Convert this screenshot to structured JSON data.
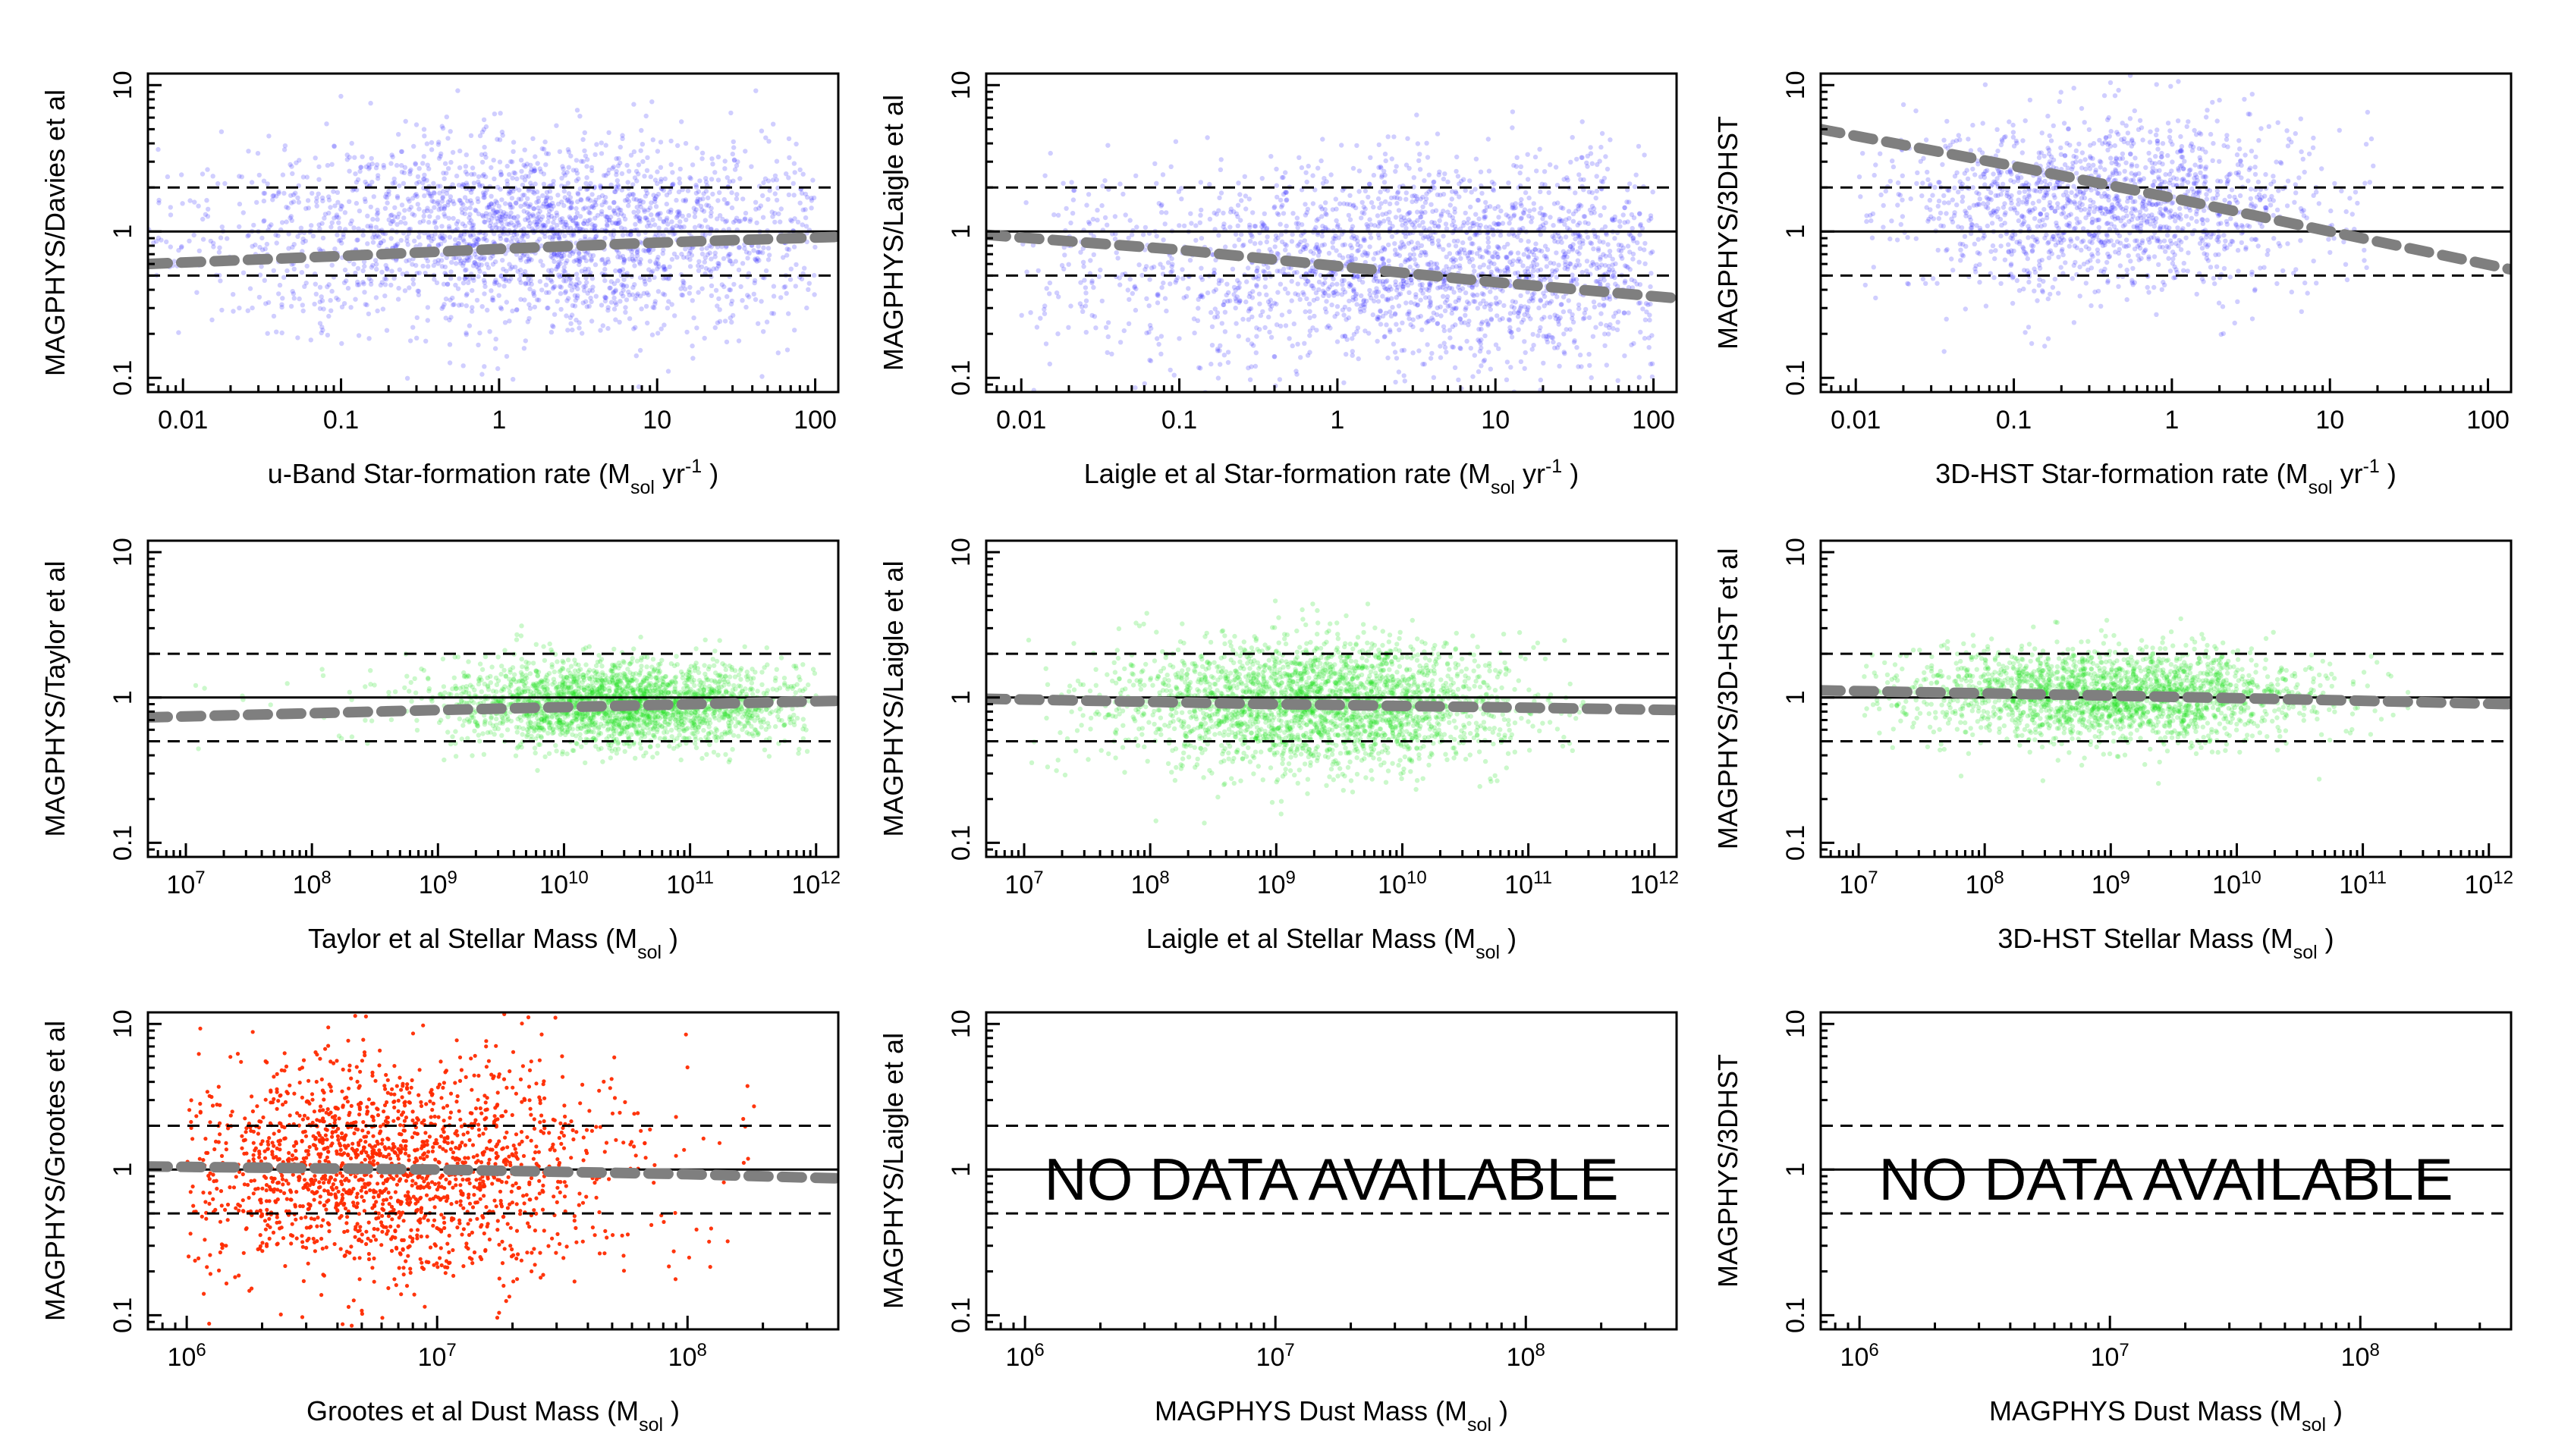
{
  "colors": {
    "sfr": "#2a1fff",
    "mass": "#14e014",
    "dust": "#ff2a00",
    "trend": "#7f7f7f",
    "reference": "#000000"
  },
  "no_data_text": "NO DATA AVAILABLE",
  "chart_data": [
    {
      "id": "p1",
      "type": "scatter",
      "row": 0,
      "col": 0,
      "point_color": "sfr",
      "xlabel": "u-Band Star-formation rate (M_sol yr^-1 )",
      "ylabel": "MAGPHYS/Davies et al",
      "xlim": [
        0.006,
        140
      ],
      "ylim": [
        0.08,
        12
      ],
      "xticks": [
        {
          "v": 0.01,
          "label": "0.01"
        },
        {
          "v": 0.1,
          "label": "0.1"
        },
        {
          "v": 1,
          "label": "1"
        },
        {
          "v": 10,
          "label": "10"
        },
        {
          "v": 100,
          "label": "100"
        }
      ],
      "yticks": [
        {
          "v": 0.1,
          "label": "0.1"
        },
        {
          "v": 1,
          "label": "1"
        },
        {
          "v": 10,
          "label": "10"
        }
      ],
      "reference_lines": {
        "solid": 1,
        "dashed": [
          0.5,
          2
        ]
      },
      "trend": {
        "x": [
          0.006,
          0.1,
          1,
          10,
          140
        ],
        "y": [
          0.6,
          0.68,
          0.76,
          0.84,
          0.92
        ]
      },
      "cloud": {
        "x_range": [
          0.006,
          100
        ],
        "x_center": 2,
        "x_spread": 1.0,
        "y_center": 1.0,
        "y_spread": 0.33,
        "n": 2400
      },
      "no_data": false
    },
    {
      "id": "p2",
      "type": "scatter",
      "row": 0,
      "col": 1,
      "point_color": "sfr",
      "xlabel": "Laigle et al Star-formation rate (M_sol yr^-1 )",
      "ylabel": "MAGPHYS/Laigle et al",
      "xlim": [
        0.006,
        140
      ],
      "ylim": [
        0.08,
        12
      ],
      "xticks": [
        {
          "v": 0.01,
          "label": "0.01"
        },
        {
          "v": 0.1,
          "label": "0.1"
        },
        {
          "v": 1,
          "label": "1"
        },
        {
          "v": 10,
          "label": "10"
        },
        {
          "v": 100,
          "label": "100"
        }
      ],
      "yticks": [
        {
          "v": 0.1,
          "label": "0.1"
        },
        {
          "v": 1,
          "label": "1"
        },
        {
          "v": 10,
          "label": "10"
        }
      ],
      "reference_lines": {
        "solid": 1,
        "dashed": [
          0.5,
          2
        ]
      },
      "trend": {
        "x": [
          0.006,
          0.1,
          1,
          10,
          140
        ],
        "y": [
          0.95,
          0.75,
          0.58,
          0.45,
          0.35
        ]
      },
      "cloud": {
        "x_range": [
          0.01,
          100
        ],
        "x_center": 5,
        "x_spread": 1.1,
        "y_center": 0.6,
        "y_spread": 0.35,
        "n": 2200
      },
      "no_data": false
    },
    {
      "id": "p3",
      "type": "scatter",
      "row": 0,
      "col": 2,
      "point_color": "sfr",
      "xlabel": "3D-HST Star-formation rate (M_sol yr^-1 )",
      "ylabel": "MAGPHYS/3DHST",
      "xlim": [
        0.006,
        140
      ],
      "ylim": [
        0.08,
        12
      ],
      "xticks": [
        {
          "v": 0.01,
          "label": "0.01"
        },
        {
          "v": 0.1,
          "label": "0.1"
        },
        {
          "v": 1,
          "label": "1"
        },
        {
          "v": 10,
          "label": "10"
        },
        {
          "v": 100,
          "label": "100"
        }
      ],
      "yticks": [
        {
          "v": 0.1,
          "label": "0.1"
        },
        {
          "v": 1,
          "label": "1"
        },
        {
          "v": 10,
          "label": "10"
        }
      ],
      "reference_lines": {
        "solid": 1,
        "dashed": [
          0.5,
          2
        ]
      },
      "trend": {
        "x": [
          0.006,
          0.1,
          1,
          10,
          140
        ],
        "y": [
          5.0,
          2.8,
          1.7,
          1.0,
          0.55
        ]
      },
      "cloud": {
        "x_range": [
          0.01,
          20
        ],
        "x_center": 0.4,
        "x_spread": 0.7,
        "y_center": 1.5,
        "y_spread": 0.3,
        "n": 1500
      },
      "no_data": false
    },
    {
      "id": "p4",
      "type": "scatter",
      "row": 1,
      "col": 0,
      "point_color": "mass",
      "xlabel": "Taylor et al Stellar Mass (M_sol )",
      "ylabel": "MAGPHYS/Taylor et al",
      "xlim": [
        5000000,
        1500000000000
      ],
      "ylim": [
        0.08,
        12
      ],
      "xticks": [
        {
          "v": 10000000,
          "label": "10^7"
        },
        {
          "v": 100000000,
          "label": "10^8"
        },
        {
          "v": 1000000000,
          "label": "10^9"
        },
        {
          "v": 10000000000,
          "label": "10^10"
        },
        {
          "v": 100000000000,
          "label": "10^11"
        },
        {
          "v": 1000000000000,
          "label": "10^12"
        }
      ],
      "yticks": [
        {
          "v": 0.1,
          "label": "0.1"
        },
        {
          "v": 1,
          "label": "1"
        },
        {
          "v": 10,
          "label": "10"
        }
      ],
      "reference_lines": {
        "solid": 1,
        "dashed": [
          0.5,
          2
        ]
      },
      "trend": {
        "x": [
          5000000,
          1000000000,
          100000000000,
          1500000000000
        ],
        "y": [
          0.73,
          0.82,
          0.9,
          0.95
        ]
      },
      "cloud": {
        "x_range": [
          10000000,
          1000000000000
        ],
        "x_center": 30000000000,
        "x_spread": 0.7,
        "y_center": 0.9,
        "y_spread": 0.14,
        "n": 2400
      },
      "no_data": false
    },
    {
      "id": "p5",
      "type": "scatter",
      "row": 1,
      "col": 1,
      "point_color": "mass",
      "xlabel": "Laigle et al Stellar Mass (M_sol )",
      "ylabel": "MAGPHYS/Laigle et al",
      "xlim": [
        5000000,
        1500000000000
      ],
      "ylim": [
        0.08,
        12
      ],
      "xticks": [
        {
          "v": 10000000,
          "label": "10^7"
        },
        {
          "v": 100000000,
          "label": "10^8"
        },
        {
          "v": 1000000000,
          "label": "10^9"
        },
        {
          "v": 10000000000,
          "label": "10^10"
        },
        {
          "v": 100000000000,
          "label": "10^11"
        },
        {
          "v": 1000000000000,
          "label": "10^12"
        }
      ],
      "yticks": [
        {
          "v": 0.1,
          "label": "0.1"
        },
        {
          "v": 1,
          "label": "1"
        },
        {
          "v": 10,
          "label": "10"
        }
      ],
      "reference_lines": {
        "solid": 1,
        "dashed": [
          0.5,
          2
        ]
      },
      "trend": {
        "x": [
          5000000,
          1000000000,
          100000000000,
          1500000000000
        ],
        "y": [
          0.98,
          0.9,
          0.85,
          0.82
        ]
      },
      "cloud": {
        "x_range": [
          10000000,
          300000000000
        ],
        "x_center": 2000000000,
        "x_spread": 0.8,
        "y_center": 0.9,
        "y_spread": 0.22,
        "n": 2600
      },
      "no_data": false
    },
    {
      "id": "p6",
      "type": "scatter",
      "row": 1,
      "col": 2,
      "point_color": "mass",
      "xlabel": "3D-HST Stellar Mass (M_sol )",
      "ylabel": "MAGPHYS/3D-HST et al",
      "xlim": [
        5000000,
        1500000000000
      ],
      "ylim": [
        0.08,
        12
      ],
      "xticks": [
        {
          "v": 10000000,
          "label": "10^7"
        },
        {
          "v": 100000000,
          "label": "10^8"
        },
        {
          "v": 1000000000,
          "label": "10^9"
        },
        {
          "v": 10000000000,
          "label": "10^10"
        },
        {
          "v": 100000000000,
          "label": "10^11"
        },
        {
          "v": 1000000000000,
          "label": "10^12"
        }
      ],
      "yticks": [
        {
          "v": 0.1,
          "label": "0.1"
        },
        {
          "v": 1,
          "label": "1"
        },
        {
          "v": 10,
          "label": "10"
        }
      ],
      "reference_lines": {
        "solid": 1,
        "dashed": [
          0.5,
          2
        ]
      },
      "trend": {
        "x": [
          5000000,
          1000000000,
          100000000000,
          1500000000000
        ],
        "y": [
          1.12,
          1.03,
          0.95,
          0.9
        ]
      },
      "cloud": {
        "x_range": [
          10000000,
          300000000000
        ],
        "x_center": 1000000000,
        "x_spread": 0.8,
        "y_center": 1.05,
        "y_spread": 0.16,
        "n": 2200
      },
      "no_data": false
    },
    {
      "id": "p7",
      "type": "scatter",
      "row": 2,
      "col": 0,
      "point_color": "dust",
      "xlabel": "Grootes et al Dust Mass (M_sol )",
      "ylabel": "MAGPHYS/Grootes et al",
      "xlim": [
        700000,
        400000000
      ],
      "ylim": [
        0.08,
        12
      ],
      "xticks": [
        {
          "v": 1000000,
          "label": "10^6"
        },
        {
          "v": 10000000,
          "label": "10^7"
        },
        {
          "v": 100000000,
          "label": "10^8"
        }
      ],
      "yticks": [
        {
          "v": 0.1,
          "label": "0.1"
        },
        {
          "v": 1,
          "label": "1"
        },
        {
          "v": 10,
          "label": "10"
        }
      ],
      "reference_lines": {
        "solid": 1,
        "dashed": [
          0.5,
          2
        ]
      },
      "trend": {
        "x": [
          700000,
          10000000,
          100000000,
          400000000
        ],
        "y": [
          1.05,
          1.0,
          0.93,
          0.87
        ]
      },
      "cloud": {
        "x_range": [
          1000000,
          200000000
        ],
        "x_center": 6000000,
        "x_spread": 0.45,
        "y_center": 1.0,
        "y_spread": 0.38,
        "n": 1800
      },
      "no_data": false
    },
    {
      "id": "p8",
      "type": "scatter",
      "row": 2,
      "col": 1,
      "point_color": "dust",
      "xlabel": "MAGPHYS Dust Mass (M_sol )",
      "ylabel": "MAGPHYS/Laigle et al",
      "xlim": [
        700000,
        400000000
      ],
      "ylim": [
        0.08,
        12
      ],
      "xticks": [
        {
          "v": 1000000,
          "label": "10^6"
        },
        {
          "v": 10000000,
          "label": "10^7"
        },
        {
          "v": 100000000,
          "label": "10^8"
        }
      ],
      "yticks": [
        {
          "v": 0.1,
          "label": "0.1"
        },
        {
          "v": 1,
          "label": "1"
        },
        {
          "v": 10,
          "label": "10"
        }
      ],
      "reference_lines": {
        "solid": 1,
        "dashed": [
          0.5,
          2
        ]
      },
      "trend": null,
      "cloud": null,
      "no_data": true
    },
    {
      "id": "p9",
      "type": "scatter",
      "row": 2,
      "col": 2,
      "point_color": "dust",
      "xlabel": "MAGPHYS Dust Mass (M_sol )",
      "ylabel": "MAGPHYS/3DHST",
      "xlim": [
        700000,
        400000000
      ],
      "ylim": [
        0.08,
        12
      ],
      "xticks": [
        {
          "v": 1000000,
          "label": "10^6"
        },
        {
          "v": 10000000,
          "label": "10^7"
        },
        {
          "v": 100000000,
          "label": "10^8"
        }
      ],
      "yticks": [
        {
          "v": 0.1,
          "label": "0.1"
        },
        {
          "v": 1,
          "label": "1"
        },
        {
          "v": 10,
          "label": "10"
        }
      ],
      "reference_lines": {
        "solid": 1,
        "dashed": [
          0.5,
          2
        ]
      },
      "trend": null,
      "cloud": null,
      "no_data": true
    }
  ]
}
